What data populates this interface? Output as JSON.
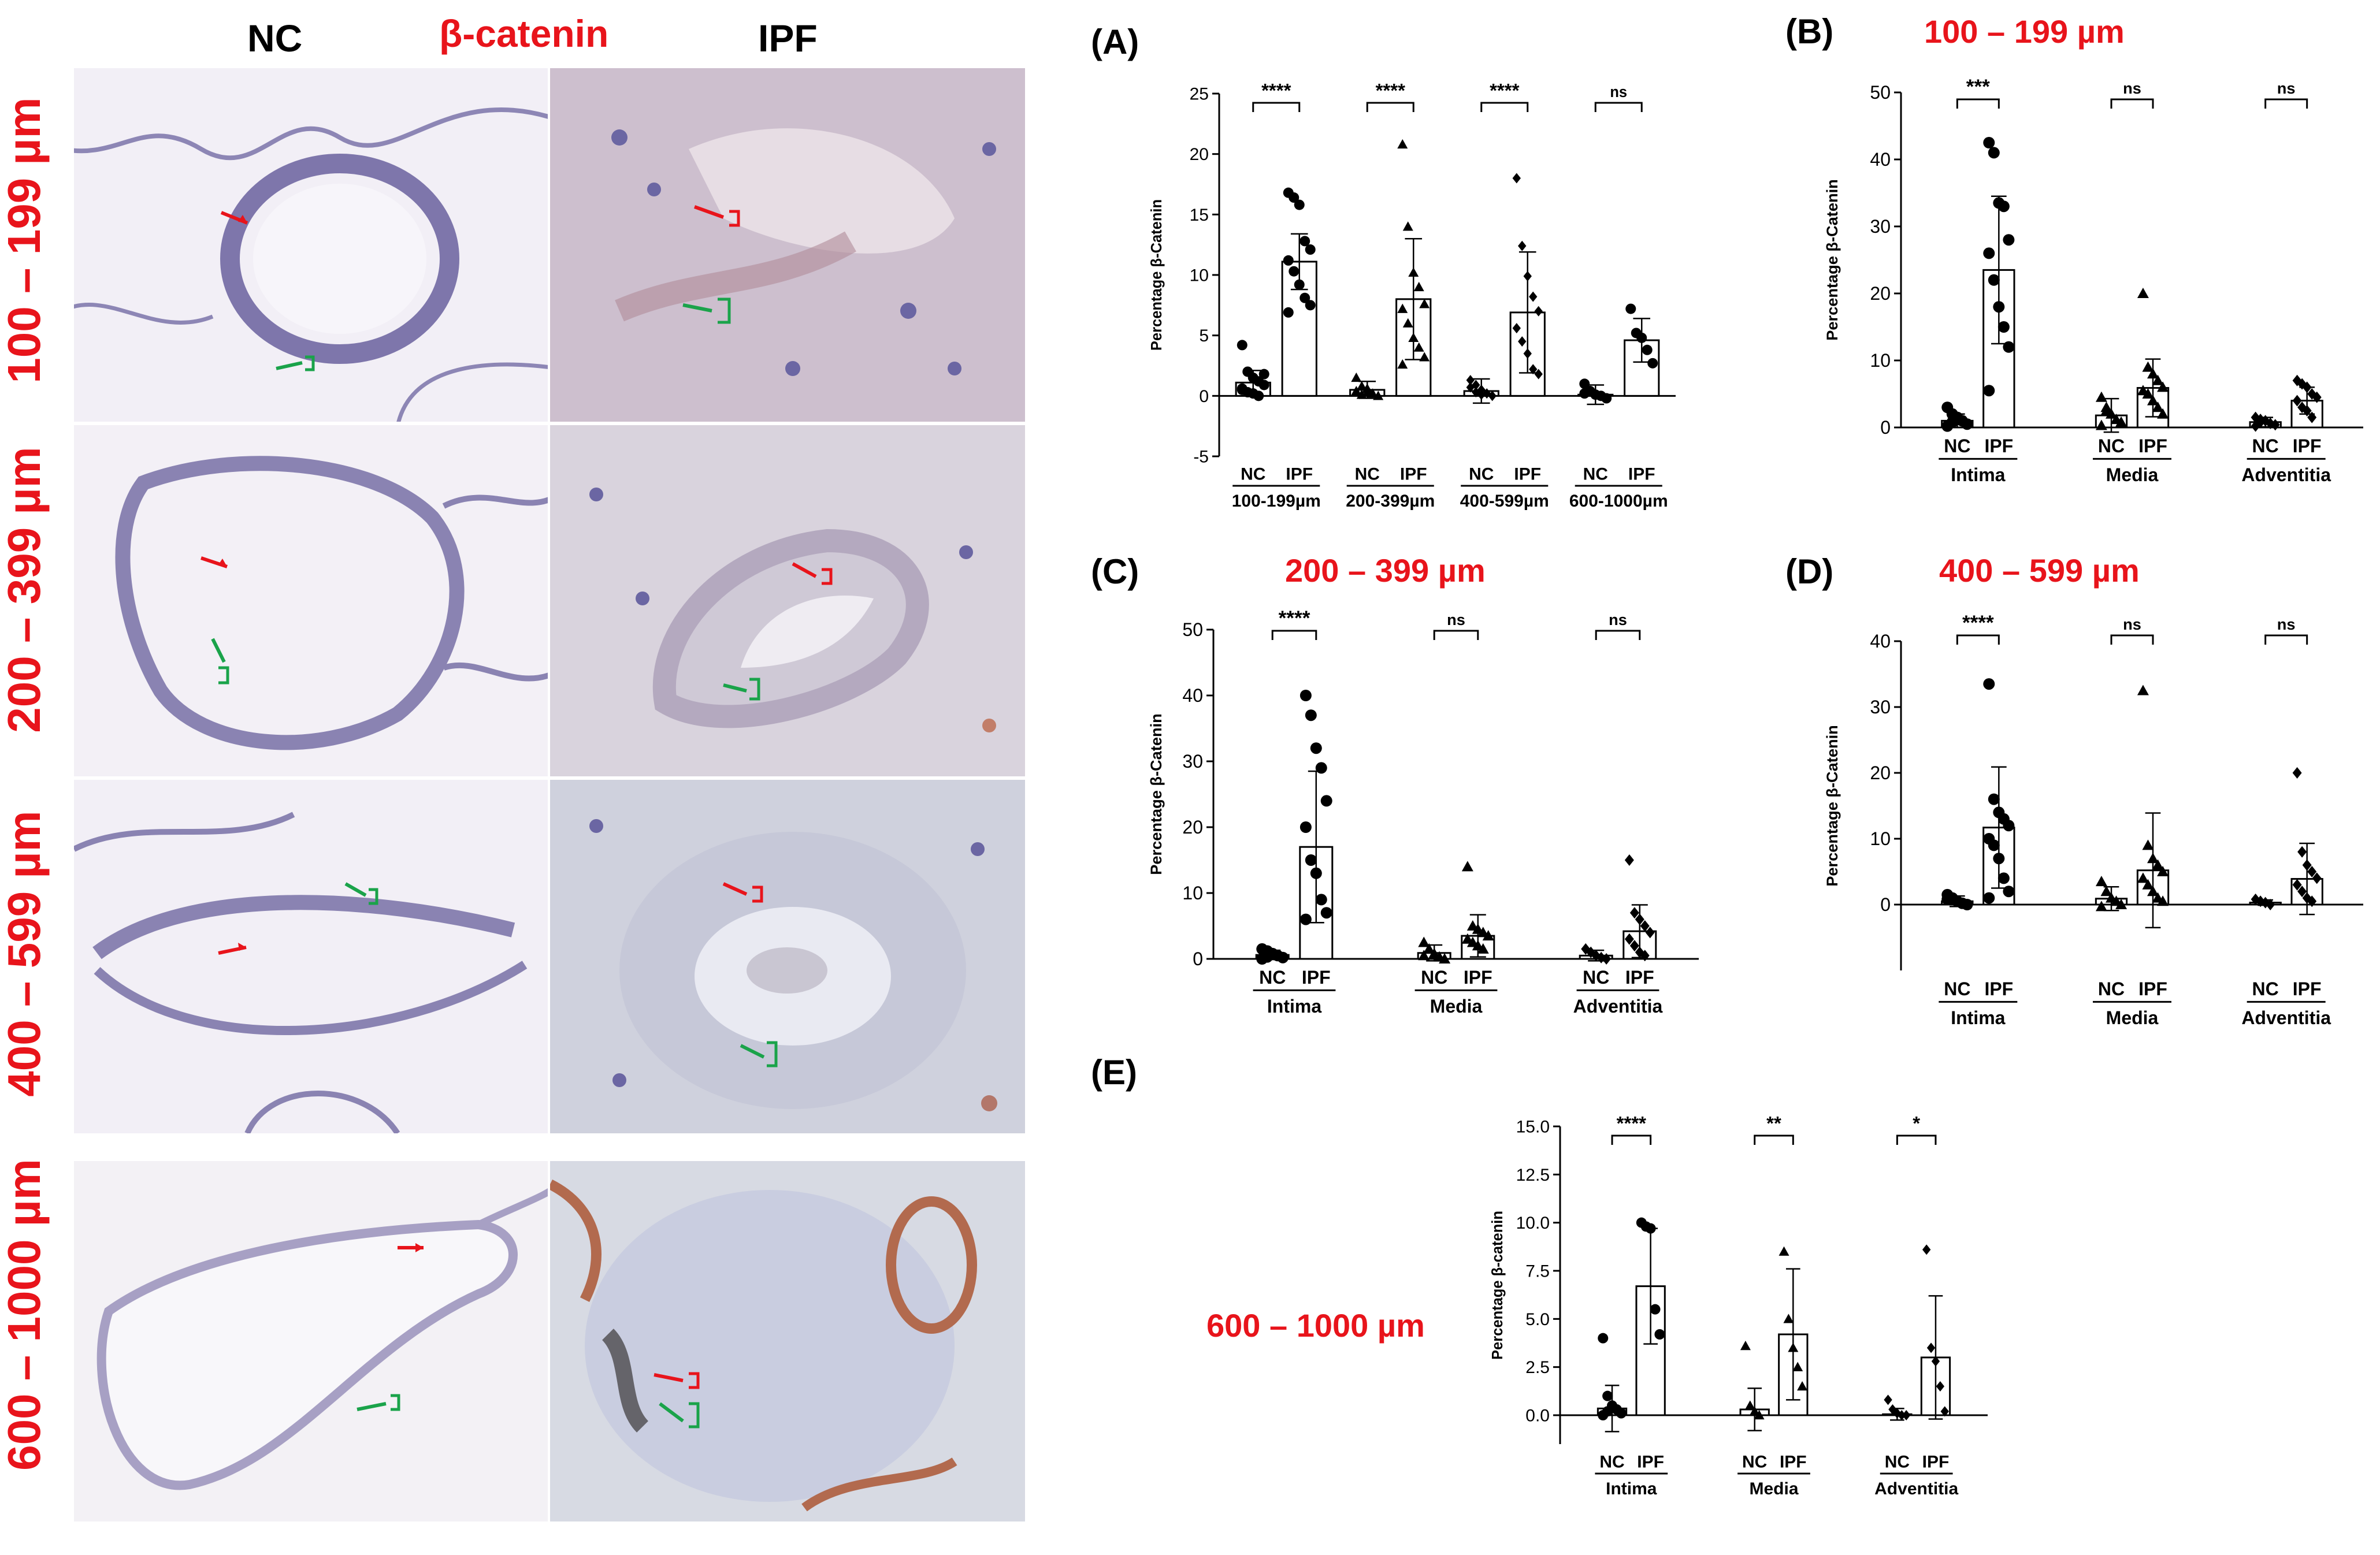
{
  "header": {
    "nc": "NC",
    "stain": "β-catenin",
    "ipf": "IPF"
  },
  "rows": [
    "100 – 199 µm",
    "200 – 399 µm",
    "400 – 599 µm",
    "600 – 1000 µm"
  ],
  "colors": {
    "red_text": "#e8141b",
    "red_arrow": "#e8141b",
    "green_arrow": "#1aa34a"
  },
  "panel_e_title": "600 – 1000 µm",
  "chart_data": [
    {
      "id": "A",
      "panel_label": "(A)",
      "type": "bar",
      "title": "",
      "ylabel": "Percentage β-Catenin",
      "ylim": [
        -5,
        25
      ],
      "yticks": [
        "-5",
        "0",
        "5",
        "10",
        "15",
        "20",
        "25"
      ],
      "x_group_labels": [
        "100-199µm",
        "200-399µm",
        "400-599µm",
        "600-1000µm"
      ],
      "categories": [
        "NC",
        "IPF",
        "NC",
        "IPF",
        "NC",
        "IPF",
        "NC",
        "IPF"
      ],
      "values": [
        1.1,
        11.1,
        0.5,
        8.0,
        0.4,
        6.9,
        0.1,
        4.6
      ],
      "sd": [
        1.0,
        2.3,
        0.7,
        5.0,
        1.0,
        5.0,
        0.8,
        1.8
      ],
      "points": [
        [
          4.2,
          2.0,
          1.5,
          1.2,
          0.9,
          0.6,
          0.3,
          0.2,
          0.0,
          1.8,
          0.5
        ],
        [
          16.8,
          16.4,
          15.8,
          12.8,
          12.1,
          11.2,
          10.3,
          9.2,
          8.1,
          7.5,
          6.9
        ],
        [
          1.5,
          0.8,
          0.3,
          0.2,
          0.0,
          0.4,
          0.1,
          0.6
        ],
        [
          20.8,
          14.0,
          10.2,
          9.0,
          7.6,
          7.2,
          6.0,
          4.8,
          4.0,
          3.2,
          2.6
        ],
        [
          1.3,
          0.9,
          0.5,
          0.2,
          0.0,
          0.7,
          0.3,
          0.1
        ],
        [
          18.0,
          12.4,
          9.9,
          8.2,
          7.0,
          5.6,
          4.5,
          3.5,
          2.2,
          1.8
        ],
        [
          1.0,
          0.4,
          0.1,
          0.0,
          -0.2,
          0.2
        ],
        [
          7.2,
          5.2,
          4.8,
          3.8,
          2.7
        ]
      ],
      "markers": [
        "circle",
        "circle",
        "triangle",
        "triangle",
        "diamond",
        "diamond",
        "circle",
        "circle"
      ],
      "significance": [
        "****",
        "****",
        "****",
        "ns"
      ]
    },
    {
      "id": "B",
      "panel_label": "(B)",
      "type": "bar",
      "title": "100 – 199 µm",
      "ylabel": "Percentage β-Catenin",
      "ylim": [
        0,
        50
      ],
      "yticks": [
        "0",
        "10",
        "20",
        "30",
        "40",
        "50"
      ],
      "x_group_labels": [
        "Intima",
        "Media",
        "Adventitia"
      ],
      "categories": [
        "NC",
        "IPF",
        "NC",
        "IPF",
        "NC",
        "IPF"
      ],
      "values": [
        1.0,
        23.5,
        1.8,
        5.9,
        0.8,
        4.0
      ],
      "sd": [
        1.0,
        11.0,
        2.5,
        4.3,
        0.7,
        2.0
      ],
      "points": [
        [
          3.0,
          2.0,
          1.5,
          1.0,
          0.5,
          0.2,
          0.8,
          1.2
        ],
        [
          42.5,
          41.0,
          33.5,
          33.0,
          28.0,
          26.0,
          22.0,
          18.0,
          15.0,
          12.0,
          5.5
        ],
        [
          4.5,
          3.0,
          2.0,
          1.2,
          0.8,
          0.3,
          2.5
        ],
        [
          20.0,
          9.0,
          8.0,
          7.0,
          6.0,
          5.5,
          5.0,
          4.0,
          3.0,
          2.0
        ],
        [
          1.5,
          1.2,
          1.0,
          0.6,
          0.4,
          0.2,
          0.8
        ],
        [
          7.0,
          6.5,
          6.0,
          5.0,
          4.5,
          4.0,
          3.0,
          2.5,
          1.5
        ]
      ],
      "markers": [
        "circle",
        "circle",
        "triangle",
        "triangle",
        "diamond",
        "diamond"
      ],
      "significance": [
        "***",
        "ns",
        "ns"
      ]
    },
    {
      "id": "C",
      "panel_label": "(C)",
      "type": "bar",
      "title": "200 – 399 µm",
      "ylabel": "Percentage β-Catenin",
      "ylim": [
        0,
        50
      ],
      "yticks": [
        "0",
        "10",
        "20",
        "30",
        "40",
        "50"
      ],
      "x_group_labels": [
        "Intima",
        "Media",
        "Adventitia"
      ],
      "categories": [
        "NC",
        "IPF",
        "NC",
        "IPF",
        "NC",
        "IPF"
      ],
      "values": [
        0.6,
        17.0,
        0.9,
        3.5,
        0.5,
        4.2
      ],
      "sd": [
        0.7,
        11.5,
        1.2,
        3.2,
        0.8,
        4.0
      ],
      "points": [
        [
          1.5,
          1.2,
          0.8,
          0.5,
          0.2,
          0.0,
          0.3
        ],
        [
          40.0,
          37.0,
          32.0,
          29.0,
          24.0,
          20.0,
          15.0,
          13.0,
          9.0,
          7.0,
          6.0
        ],
        [
          2.5,
          1.5,
          0.8,
          0.3,
          0.0,
          0.5
        ],
        [
          14.0,
          5.0,
          4.5,
          4.0,
          3.5,
          3.0,
          2.5,
          2.0,
          1.5
        ],
        [
          1.5,
          1.0,
          0.5,
          0.2,
          0.0
        ],
        [
          15.0,
          7.0,
          6.0,
          5.0,
          4.0,
          3.0,
          2.0,
          1.0,
          0.5
        ]
      ],
      "markers": [
        "circle",
        "circle",
        "triangle",
        "triangle",
        "diamond",
        "diamond"
      ],
      "significance": [
        "****",
        "ns",
        "ns"
      ]
    },
    {
      "id": "D",
      "panel_label": "(D)",
      "type": "bar",
      "title": "400 – 599 µm",
      "ylabel": "Percentage β-Catenin",
      "ylim": [
        -10,
        40
      ],
      "yticks": [
        "0",
        "10",
        "20",
        "30",
        "40"
      ],
      "x_group_labels": [
        "Intima",
        "Media",
        "Adventitia"
      ],
      "categories": [
        "NC",
        "IPF",
        "NC",
        "IPF",
        "NC",
        "IPF"
      ],
      "values": [
        0.5,
        11.7,
        0.9,
        5.2,
        0.3,
        3.9
      ],
      "sd": [
        0.8,
        9.2,
        1.8,
        8.7,
        0.4,
        5.4
      ],
      "points": [
        [
          1.5,
          1.0,
          0.5,
          0.2,
          0.0,
          0.8
        ],
        [
          33.5,
          16.0,
          14.0,
          13.0,
          12.0,
          10.0,
          9.0,
          7.0,
          4.0,
          2.0,
          1.0
        ],
        [
          3.5,
          2.0,
          1.0,
          0.5,
          0.0,
          -0.3
        ],
        [
          32.5,
          9.0,
          7.0,
          6.0,
          5.0,
          4.0,
          3.0,
          2.0,
          1.0,
          0.5
        ],
        [
          0.8,
          0.5,
          0.3,
          0.0
        ],
        [
          20.0,
          8.0,
          6.0,
          5.0,
          4.0,
          3.0,
          2.0,
          1.0,
          0.5
        ]
      ],
      "markers": [
        "circle",
        "circle",
        "triangle",
        "triangle",
        "diamond",
        "diamond"
      ],
      "significance": [
        "****",
        "ns",
        "ns"
      ]
    },
    {
      "id": "E",
      "panel_label": "(E)",
      "type": "bar",
      "title": "",
      "ylabel": "Percentage β-catenin",
      "ylim": [
        -1.5,
        15
      ],
      "yticks": [
        "0.0",
        "2.5",
        "5.0",
        "7.5",
        "10.0",
        "12.5",
        "15.0"
      ],
      "x_group_labels": [
        "Intima",
        "Media",
        "Adventitia"
      ],
      "categories": [
        "NC",
        "IPF",
        "NC",
        "IPF",
        "NC",
        "IPF"
      ],
      "values": [
        0.35,
        6.7,
        0.3,
        4.2,
        0.05,
        3.0
      ],
      "sd": [
        1.2,
        3.0,
        1.1,
        3.4,
        0.3,
        3.2
      ],
      "points": [
        [
          4.0,
          1.0,
          0.5,
          0.3,
          0.1,
          0.0,
          0.2
        ],
        [
          10.0,
          9.8,
          9.7,
          5.5,
          4.2
        ],
        [
          3.6,
          0.5,
          0.2,
          0.0
        ],
        [
          8.5,
          5.0,
          3.5,
          2.5,
          1.5
        ],
        [
          0.8,
          0.3,
          0.1,
          0.0,
          0.0
        ],
        [
          8.6,
          3.5,
          2.8,
          1.5,
          0.2
        ]
      ],
      "markers": [
        "circle",
        "circle",
        "triangle",
        "triangle",
        "diamond",
        "diamond"
      ],
      "significance": [
        "****",
        "**",
        "*"
      ]
    }
  ]
}
